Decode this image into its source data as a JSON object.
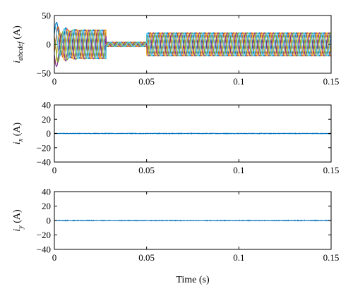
{
  "chart_data": [
    {
      "type": "line",
      "xlabel": "",
      "ylabel_main": "i",
      "ylabel_sub": "abcdef",
      "ylabel_unit": " (A)",
      "xlim": [
        0,
        0.15
      ],
      "ylim": [
        -50,
        50
      ],
      "xticks": [
        0,
        0.05,
        0.1,
        0.15
      ],
      "xtick_labels": [
        "0",
        "0.05",
        "0.1",
        "0.15"
      ],
      "yticks": [
        -50,
        0,
        50
      ],
      "ytick_labels": [
        "−50",
        "0",
        "50"
      ],
      "grid": false,
      "waveform": {
        "phases": 6,
        "frequency_hz": 200,
        "colors": [
          "#0072BD",
          "#D95319",
          "#EDB120",
          "#7E2F8E",
          "#77AC30",
          "#4DBEEE"
        ],
        "segments": [
          {
            "t_start": 0.0,
            "t_end": 0.028,
            "amplitude": 25,
            "note": "transient start"
          },
          {
            "t_start": 0.028,
            "t_end": 0.05,
            "amplitude": 4
          },
          {
            "t_start": 0.05,
            "t_end": 0.15,
            "amplitude": 20
          }
        ]
      }
    },
    {
      "type": "line",
      "xlabel": "",
      "ylabel_main": "i",
      "ylabel_sub": "x",
      "ylabel_unit": " (A)",
      "xlim": [
        0,
        0.15
      ],
      "ylim": [
        -40,
        40
      ],
      "xticks": [
        0,
        0.05,
        0.1,
        0.15
      ],
      "xtick_labels": [
        "0",
        "0.05",
        "0.1",
        "0.15"
      ],
      "yticks": [
        -40,
        -20,
        0,
        20,
        40
      ],
      "ytick_labels": [
        "−40",
        "−20",
        "0",
        "20",
        "40"
      ],
      "grid": false,
      "series": [
        {
          "color": "#0072BD",
          "level": 0,
          "noise": 0.4
        }
      ]
    },
    {
      "type": "line",
      "xlabel": "Time (s)",
      "ylabel_main": "i",
      "ylabel_sub": "y",
      "ylabel_unit": " (A)",
      "xlim": [
        0,
        0.15
      ],
      "ylim": [
        -40,
        40
      ],
      "xticks": [
        0,
        0.05,
        0.1,
        0.15
      ],
      "xtick_labels": [
        "0",
        "0.05",
        "0.1",
        "0.15"
      ],
      "yticks": [
        -40,
        -20,
        0,
        20,
        40
      ],
      "ytick_labels": [
        "−40",
        "−20",
        "0",
        "20",
        "40"
      ],
      "grid": false,
      "series": [
        {
          "color": "#0072BD",
          "level": 0,
          "noise": 0.4
        }
      ]
    }
  ]
}
